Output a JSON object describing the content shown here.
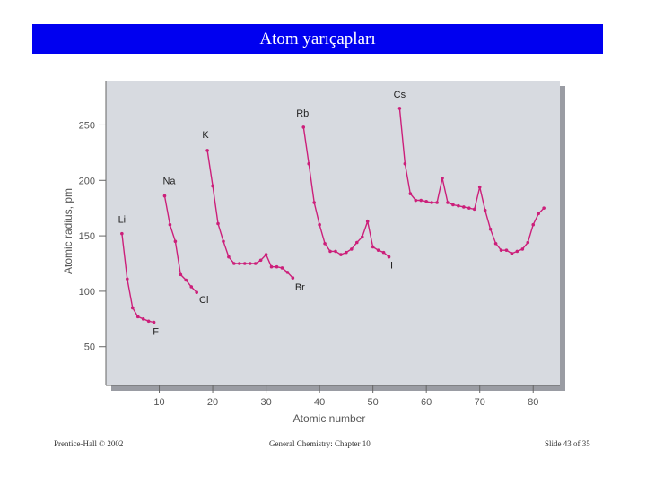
{
  "slide": {
    "title": "Atom yarıçapları",
    "footer_left": "Prentice-Hall © 2002",
    "footer_center": "General Chemistry: Chapter 10",
    "footer_right": "Slide 43 of 35"
  },
  "colors": {
    "title_bar": "#0000f0",
    "plot_background": "#d7dae0",
    "plot_shadow": "#9a9ca3",
    "series": "#cc1f7a"
  },
  "chart_data": {
    "type": "line",
    "xlabel": "Atomic number",
    "ylabel": "Atomic radius, pm",
    "xlim": [
      0,
      85
    ],
    "ylim": [
      15,
      290
    ],
    "xticks": [
      10,
      20,
      30,
      40,
      50,
      60,
      70,
      80
    ],
    "yticks": [
      50,
      100,
      150,
      200,
      250
    ],
    "series": [
      {
        "x": [
          3,
          4,
          5,
          6,
          7,
          8,
          9
        ],
        "y": [
          152,
          111,
          85,
          77,
          75,
          73,
          72
        ]
      },
      {
        "x": [
          11,
          12,
          13,
          14,
          15,
          16,
          17
        ],
        "y": [
          186,
          160,
          145,
          115,
          110,
          104,
          99
        ]
      },
      {
        "x": [
          19,
          20,
          21,
          22,
          23,
          24,
          25,
          26,
          27,
          28,
          29,
          30,
          31,
          32,
          33,
          34,
          35
        ],
        "y": [
          227,
          195,
          161,
          145,
          131,
          125,
          125,
          125,
          125,
          125,
          128,
          133,
          122,
          122,
          121,
          117,
          112
        ]
      },
      {
        "x": [
          37,
          38,
          39,
          40,
          41,
          42,
          43,
          44,
          45,
          46,
          47,
          48,
          49,
          50,
          51,
          52,
          53
        ],
        "y": [
          248,
          215,
          180,
          160,
          143,
          136,
          136,
          133,
          135,
          138,
          144,
          149,
          163,
          140,
          137,
          135,
          131
        ]
      },
      {
        "x": [
          55,
          56,
          57,
          58,
          59,
          60,
          61,
          62,
          63,
          64,
          65,
          66,
          67,
          68,
          69,
          70,
          71,
          72,
          73,
          74,
          75,
          76,
          77,
          78,
          79,
          80,
          81,
          82
        ],
        "y": [
          265,
          215,
          188,
          182,
          182,
          181,
          180,
          180,
          202,
          180,
          178,
          177,
          176,
          175,
          174,
          194,
          173,
          156,
          143,
          137,
          137,
          134,
          136,
          138,
          144,
          160,
          170,
          175
        ]
      }
    ],
    "annotations": [
      {
        "label": "Li",
        "x": 3,
        "y": 152
      },
      {
        "label": "F",
        "x": 9,
        "y": 72
      },
      {
        "label": "Na",
        "x": 11,
        "y": 186
      },
      {
        "label": "Cl",
        "x": 17,
        "y": 99
      },
      {
        "label": "K",
        "x": 19,
        "y": 227
      },
      {
        "label": "Br",
        "x": 35,
        "y": 112
      },
      {
        "label": "Rb",
        "x": 37,
        "y": 248
      },
      {
        "label": "I",
        "x": 53,
        "y": 131
      },
      {
        "label": "Cs",
        "x": 55,
        "y": 265
      }
    ]
  }
}
